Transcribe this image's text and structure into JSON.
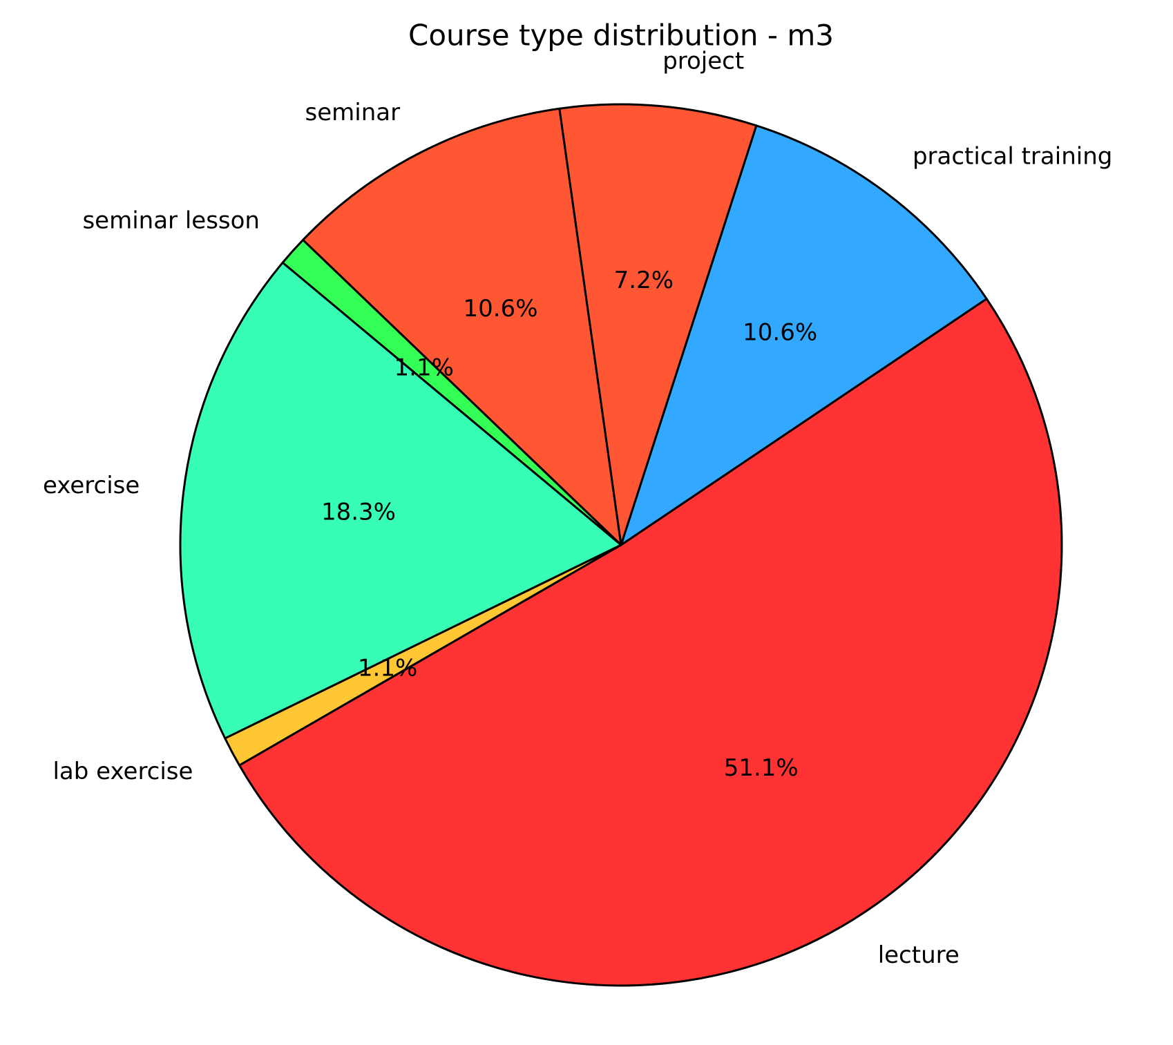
{
  "chart_data": {
    "type": "pie",
    "title": "Course type distribution - m3",
    "categories": [
      "lecture",
      "practical training",
      "project",
      "seminar",
      "seminar lesson",
      "exercise",
      "lab exercise"
    ],
    "values": [
      51.1,
      10.6,
      7.2,
      10.6,
      1.1,
      18.3,
      1.1
    ],
    "value_labels": [
      "51.1%",
      "10.6%",
      "7.2%",
      "10.6%",
      "1.1%",
      "18.3%",
      "1.1%"
    ],
    "colors": [
      "#ff3333",
      "#33a8ff",
      "#ff5733",
      "#ff5733",
      "#33ff57",
      "#36ffb5",
      "#ffc733"
    ],
    "startangle": 210
  }
}
